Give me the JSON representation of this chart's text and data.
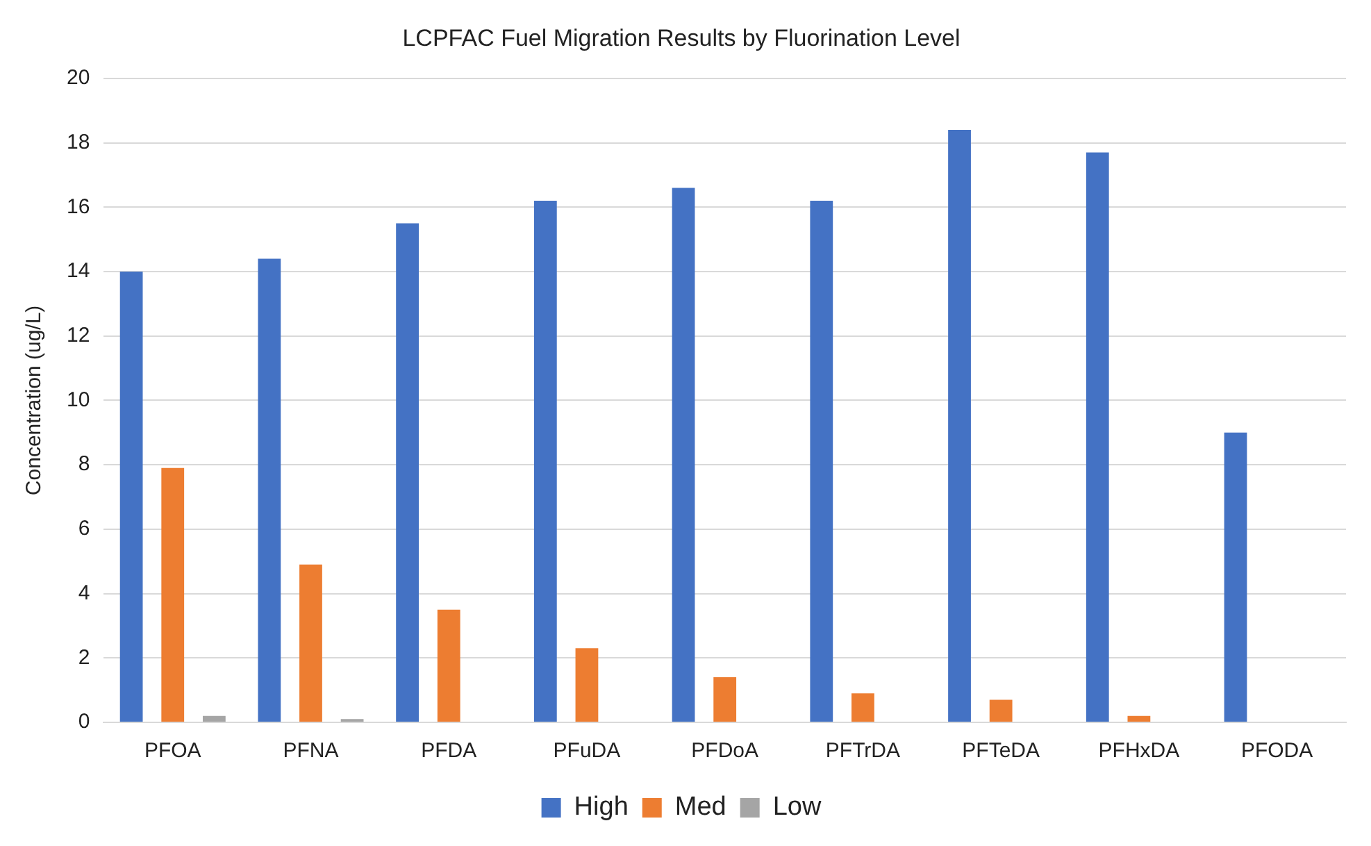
{
  "chart_data": {
    "type": "bar",
    "title": "LCPFAC Fuel Migration Results by Fluorination Level",
    "ylabel": "Concentration (ug/L)",
    "categories": [
      "PFOA",
      "PFNA",
      "PFDA",
      "PFuDA",
      "PFDoA",
      "PFTrDA",
      "PFTeDA",
      "PFHxDA",
      "PFODA"
    ],
    "series": [
      {
        "name": "High",
        "color": "#4472c4",
        "values": [
          14.0,
          14.4,
          15.5,
          16.2,
          16.6,
          16.2,
          18.4,
          17.7,
          9.0
        ]
      },
      {
        "name": "Med",
        "color": "#ed7d31",
        "values": [
          7.9,
          4.9,
          3.5,
          2.3,
          1.4,
          0.9,
          0.7,
          0.2,
          0
        ]
      },
      {
        "name": "Low",
        "color": "#a5a5a5",
        "values": [
          0.2,
          0.1,
          0,
          0,
          0,
          0,
          0,
          0,
          0
        ]
      }
    ],
    "ylim": [
      0,
      20
    ],
    "yticks": [
      0,
      2,
      4,
      6,
      8,
      10,
      12,
      14,
      16,
      18,
      20
    ],
    "grid": "y",
    "legend": "bottom"
  }
}
